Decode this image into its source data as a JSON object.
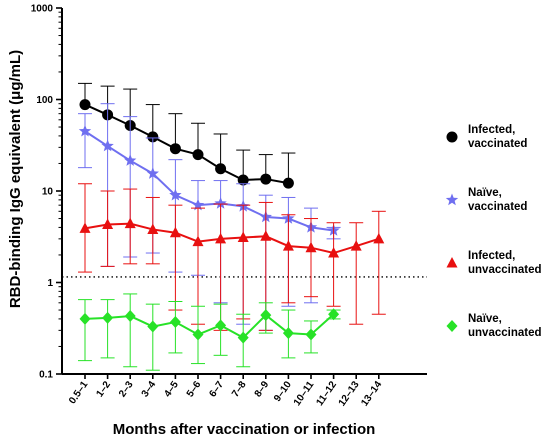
{
  "chart_data": {
    "type": "line",
    "title": "",
    "xlabel": "Months after vaccination or infection",
    "ylabel": "RBD-binding IgG equivalent (μg/mL)",
    "yscale": "log",
    "ylim": [
      0.1,
      1000
    ],
    "yticks": [
      {
        "value": 0.1,
        "label": "0.1"
      },
      {
        "value": 1,
        "label": "1"
      },
      {
        "value": 10,
        "label": "10"
      },
      {
        "value": 100,
        "label": "100"
      },
      {
        "value": 1000,
        "label": "1000"
      }
    ],
    "categories": [
      "0.5–1",
      "1–2",
      "2–3",
      "3–4",
      "4–5",
      "5–6",
      "6–7",
      "7–8",
      "8–9",
      "9–10",
      "10–11",
      "11–12",
      "12–13",
      "13–14"
    ],
    "reference_line": {
      "y": 1.15,
      "style": "dotted"
    },
    "legend_position": "right",
    "series": [
      {
        "name": [
          "Infected,",
          "vaccinated"
        ],
        "color": "#000000",
        "marker": "circle",
        "values": [
          88,
          68,
          52,
          39,
          29,
          25,
          17.5,
          13.2,
          13.5,
          12.2,
          null,
          null,
          null,
          null
        ],
        "upper": [
          150,
          140,
          130,
          88,
          70,
          55,
          42,
          28,
          25,
          26,
          null,
          null,
          null,
          null
        ],
        "lower": [
          null,
          null,
          null,
          null,
          null,
          null,
          null,
          null,
          null,
          null,
          null,
          null,
          null,
          null
        ]
      },
      {
        "name": [
          "Naïve,",
          "vaccinated"
        ],
        "color": "#6f6ff0",
        "marker": "star",
        "values": [
          45,
          31,
          21.5,
          15.5,
          9,
          7,
          7.3,
          6.8,
          5.2,
          5,
          4,
          3.7,
          null,
          null
        ],
        "upper": [
          70,
          90,
          65,
          38,
          22,
          13,
          13,
          12,
          9,
          8.5,
          6.5,
          4,
          null,
          null
        ],
        "lower": [
          18,
          1.5,
          1.9,
          2.1,
          1.3,
          1.2,
          0.6,
          0.35,
          0.3,
          0.55,
          0.6,
          3,
          null,
          null
        ]
      },
      {
        "name": [
          "Infected,",
          "unvaccinated"
        ],
        "color": "#e81010",
        "marker": "triangle",
        "values": [
          3.9,
          4.3,
          4.4,
          3.8,
          3.5,
          2.8,
          3,
          3.1,
          3.2,
          2.5,
          2.4,
          2.1,
          2.5,
          3
        ],
        "upper": [
          12,
          10,
          10.5,
          8.5,
          7,
          6.5,
          7.2,
          7,
          7.5,
          5.5,
          5,
          4.5,
          4.5,
          6
        ],
        "lower": [
          1.3,
          1.5,
          1.6,
          1.6,
          0.5,
          0.35,
          0.3,
          0.4,
          0.3,
          0.6,
          0.7,
          0.55,
          0.35,
          0.45
        ]
      },
      {
        "name": [
          "Naïve,",
          "unvaccinated"
        ],
        "color": "#27e227",
        "marker": "diamond",
        "values": [
          0.4,
          0.41,
          0.43,
          0.33,
          0.37,
          0.27,
          0.34,
          0.25,
          0.44,
          0.28,
          0.27,
          0.45,
          null,
          null
        ],
        "upper": [
          0.65,
          0.65,
          0.75,
          0.58,
          0.62,
          0.55,
          0.58,
          0.45,
          0.6,
          0.5,
          0.38,
          0.5,
          null,
          null
        ],
        "lower": [
          0.14,
          0.15,
          0.12,
          0.11,
          0.17,
          0.13,
          0.16,
          0.12,
          0.28,
          0.15,
          0.17,
          0.4,
          null,
          null
        ]
      }
    ]
  }
}
